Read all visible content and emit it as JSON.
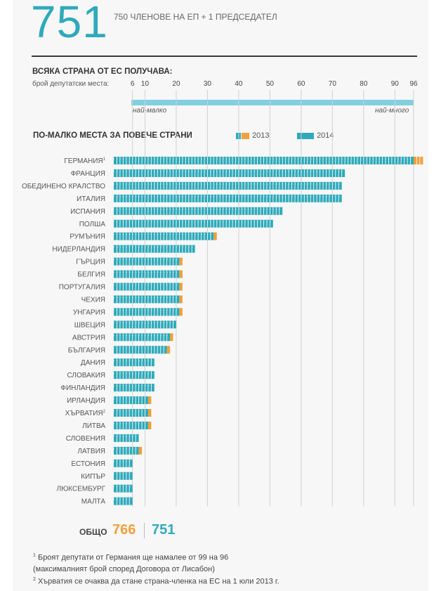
{
  "header": {
    "big_number": "751",
    "subtitle": "750 ЧЛЕНОВЕ НА ЕП + 1 ПРЕДСЕДАТЕЛ"
  },
  "scale": {
    "title": "ВСЯКА СТРАНА ОТ ЕС ПОЛУЧАВА:",
    "label": "брой депутатски места:",
    "ticks": [
      "6",
      "10",
      "20",
      "30",
      "40",
      "50",
      "60",
      "70",
      "80",
      "90",
      "96"
    ],
    "min_label": "най-малко",
    "max_label": "най-много"
  },
  "legend": {
    "title": "ПО-МАЛКО МЕСТА ЗА ПОВЕЧЕ СТРАНИ",
    "label_2013": "2013",
    "label_2014": "2014"
  },
  "colors": {
    "teal": "#2eaabb",
    "orange": "#f0a03c",
    "scale_bar": "#82cfe0",
    "gridline": "#d0d0d0"
  },
  "chart_data": {
    "type": "bar",
    "orientation": "horizontal",
    "title": "ПО-МАЛКО МЕСТА ЗА ПОВЕЧЕ СТРАНИ",
    "xlim": [
      0,
      96
    ],
    "x_ticks": [
      6,
      10,
      20,
      30,
      40,
      50,
      60,
      70,
      80,
      90,
      96
    ],
    "grid": true,
    "legend_position": "top",
    "categories": [
      "ГЕРМАНИЯ",
      "ФРАНЦИЯ",
      "ОБЕДИНЕНО КРАЛСТВО",
      "ИТАЛИЯ",
      "ИСПАНИЯ",
      "ПОЛША",
      "РУМЪНИЯ",
      "НИДЕРЛАНДИЯ",
      "ГЪРЦИЯ",
      "БЕЛГИЯ",
      "ПОРТУГАЛИЯ",
      "ЧЕХИЯ",
      "УНГАРИЯ",
      "ШВЕЦИЯ",
      "АВСТРИЯ",
      "БЪЛГАРИЯ",
      "ДАНИЯ",
      "СЛОВАКИЯ",
      "ФИНЛАНДИЯ",
      "ИРЛАНДИЯ",
      "ХЪРВАТИЯ",
      "ЛИТВА",
      "СЛОВЕНИЯ",
      "ЛАТВИЯ",
      "ЕСТОНИЯ",
      "КИПЪР",
      "ЛЮКСЕМБУРГ",
      "МАЛТА"
    ],
    "footnote_marks": [
      "1",
      "",
      "",
      "",
      "",
      "",
      "",
      "",
      "",
      "",
      "",
      "",
      "",
      "",
      "",
      "",
      "",
      "",
      "",
      "",
      "2",
      "",
      "",
      "",
      "",
      "",
      "",
      ""
    ],
    "series": [
      {
        "name": "2013",
        "values": [
          99,
          74,
          73,
          73,
          54,
          51,
          33,
          26,
          22,
          22,
          22,
          22,
          22,
          20,
          19,
          18,
          13,
          13,
          13,
          12,
          12,
          12,
          8,
          9,
          6,
          6,
          6,
          6
        ]
      },
      {
        "name": "2014",
        "values": [
          96,
          74,
          73,
          73,
          54,
          51,
          32,
          26,
          21,
          21,
          21,
          21,
          21,
          20,
          18,
          17,
          13,
          13,
          13,
          11,
          11,
          11,
          8,
          8,
          6,
          6,
          6,
          6
        ]
      }
    ]
  },
  "totals": {
    "label": "ОБЩО",
    "total_2013": "766",
    "total_2014": "751"
  },
  "footnotes": [
    {
      "mark": "1",
      "text": "Броят депутати от Германия ще намалее от 99 на 96"
    },
    {
      "mark": "",
      "text": "(максималният брой според Договора от Лисабон)"
    },
    {
      "mark": "2",
      "text": "Хърватия се очаква да стане страна-членка на ЕС на 1 юли 2013 г."
    }
  ]
}
